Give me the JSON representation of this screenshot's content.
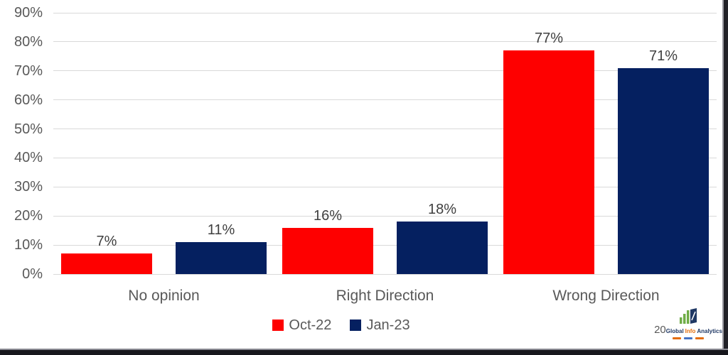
{
  "chart_data": {
    "type": "bar",
    "title": "",
    "xlabel": "",
    "ylabel": "",
    "categories": [
      "No opinion",
      "Right Direction",
      "Wrong Direction"
    ],
    "series": [
      {
        "name": "Oct-22",
        "color": "#fe0000",
        "values": [
          7,
          16,
          77
        ]
      },
      {
        "name": "Jan-23",
        "color": "#052060",
        "values": [
          11,
          18,
          71
        ]
      }
    ],
    "value_suffix": "%",
    "ylim": [
      0,
      90
    ],
    "y_tick_step": 10,
    "y_tick_labels": [
      "0%",
      "10%",
      "20%",
      "30%",
      "40%",
      "50%",
      "60%",
      "70%",
      "80%",
      "90%"
    ],
    "grid": true,
    "legend_position": "bottom-center",
    "data_labels_shown": true
  },
  "legend": {
    "items": [
      {
        "label": "Oct-22",
        "color": "#fe0000"
      },
      {
        "label": "Jan-23",
        "color": "#052060"
      }
    ]
  },
  "logo": {
    "prefix": "20",
    "words": [
      {
        "text": "Global",
        "color": "#1f3864"
      },
      {
        "text": "Info",
        "color": "#e36c0a"
      },
      {
        "text": "Analytics",
        "color": "#1f3864"
      }
    ]
  },
  "colors": {
    "background": "#ffffff",
    "gridline": "#d9d9d9",
    "axis_text": "#595959",
    "data_label_text": "#3f3f3f",
    "series_red": "#fe0000",
    "series_navy": "#052060",
    "logo_green": "#70ad47",
    "logo_navy": "#1f3864",
    "bottom_bar": "#17171d",
    "right_bar": "#212127"
  }
}
